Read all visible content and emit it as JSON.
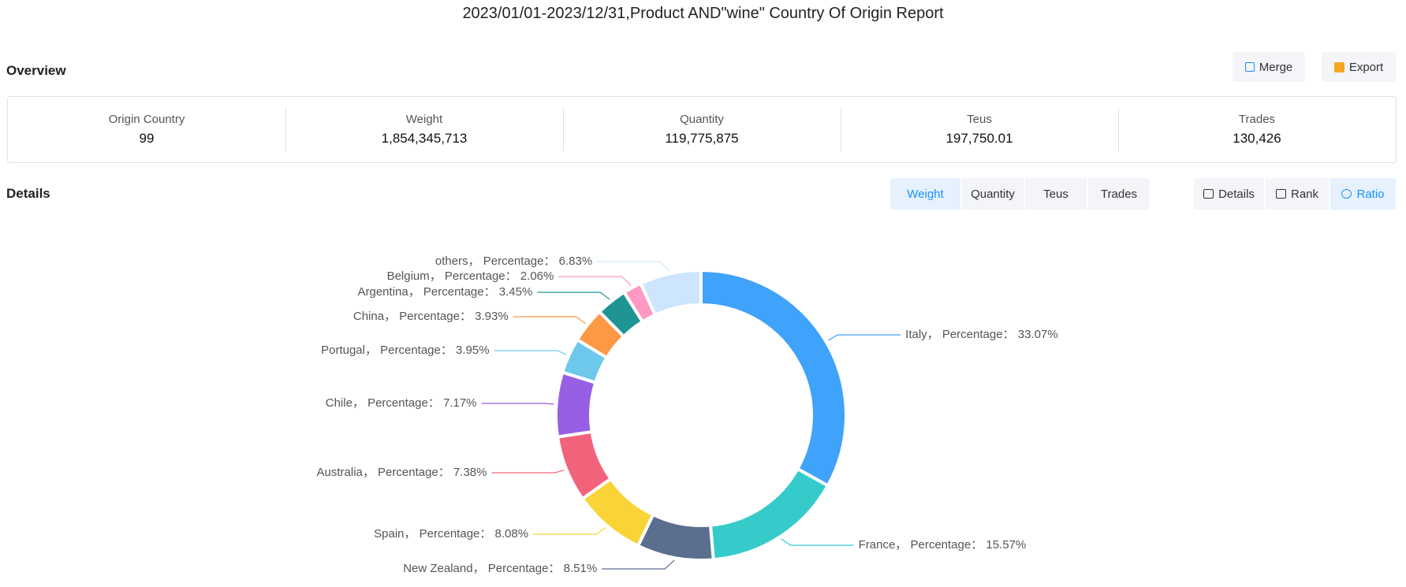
{
  "header": {
    "title": "2023/01/01-2023/12/31,Product AND\"wine\" Country Of Origin Report"
  },
  "overview": {
    "title": "Overview",
    "buttons": [
      "Merge",
      "Export"
    ],
    "stats": [
      {
        "label": "Origin Country",
        "value": "99"
      },
      {
        "label": "Weight",
        "value": "1,854,345,713"
      },
      {
        "label": "Quantity",
        "value": "119,775,875"
      },
      {
        "label": "Teus",
        "value": "197,750.01"
      },
      {
        "label": "Trades",
        "value": "130,426"
      }
    ]
  },
  "details": {
    "title": "Details",
    "metric_tabs": [
      "Weight",
      "Quantity",
      "Teus",
      "Trades"
    ],
    "view_tabs": [
      "Details",
      "Rank",
      "Ratio"
    ]
  },
  "chart_data": {
    "type": "pie",
    "values": [
      33.07,
      15.57,
      8.51,
      8.08,
      7.38,
      7.17,
      3.95,
      3.93,
      3.45,
      2.06,
      6.83
    ],
    "value_labels": [
      "Italy， Percentage： 33.07%",
      "France， Percentage： 15.57%",
      "New Zealand， Percentage： 8.51%",
      "Spain， Percentage： 8.08%",
      "Australia， Percentage： 7.38%",
      "Chile， Percentage： 7.17%",
      "Portugal， Percentage： 3.95%",
      "China， Percentage： 3.93%",
      "Argentina， Percentage： 3.45%",
      "Belgium， Percentage： 2.06%",
      "others， Percentage： 6.83%"
    ],
    "colors": [
      "#3fa2fb",
      "#36cbcb",
      "#5b6e8f",
      "#fad337",
      "#f2637b",
      "#975fe4",
      "#6dc8ec",
      "#ff9845",
      "#1e9493",
      "#ff99c3",
      "#cde5fe"
    ]
  }
}
